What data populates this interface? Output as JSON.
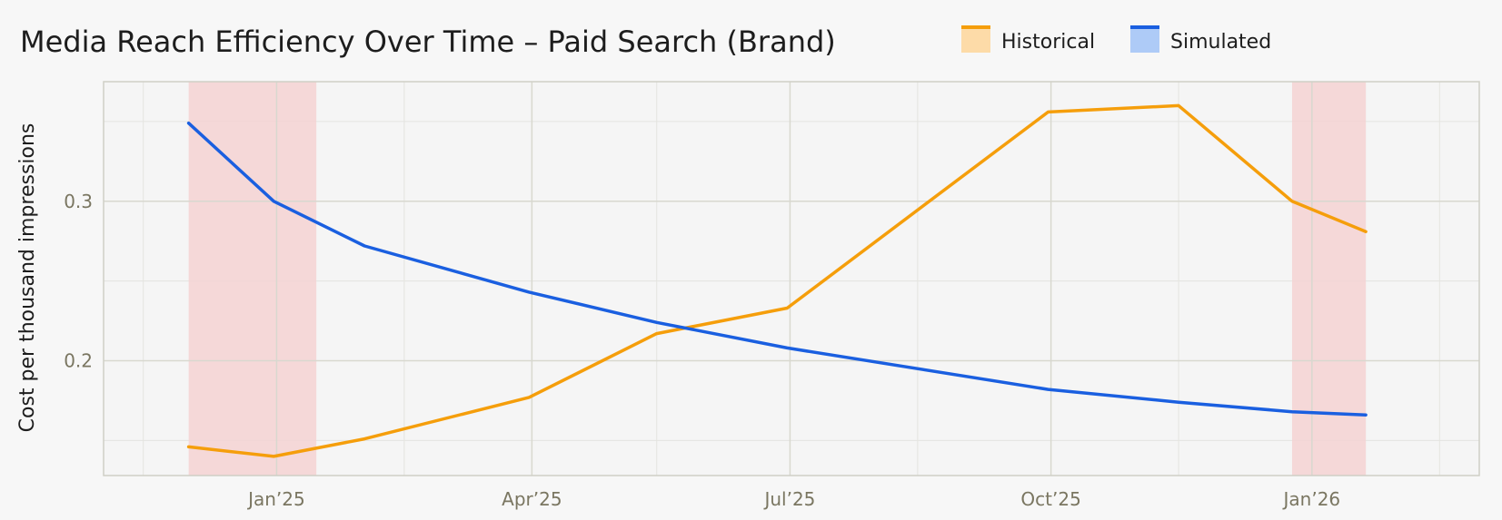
{
  "chart_data": {
    "type": "line",
    "title": "Media Reach Efficiency Over Time – Paid Search (Brand)",
    "xlabel": "",
    "ylabel": "Cost per thousand impressions",
    "x": [
      "2024-12-01",
      "2024-12-31",
      "2025-02-01",
      "2025-03-31",
      "2025-05-15",
      "2025-06-30",
      "2025-09-30",
      "2025-11-15",
      "2025-12-25",
      "2026-01-20"
    ],
    "series": [
      {
        "name": "Historical",
        "color": "#f59e0b",
        "values": [
          0.146,
          0.14,
          0.151,
          0.177,
          0.217,
          0.233,
          0.356,
          0.36,
          0.3,
          0.281
        ]
      },
      {
        "name": "Simulated",
        "color": "#1a5fe0",
        "values": [
          0.349,
          0.3,
          0.272,
          0.243,
          0.224,
          0.208,
          0.182,
          0.174,
          0.168,
          0.166
        ]
      }
    ],
    "xticks": [
      "2025-01-01",
      "2025-04-01",
      "2025-07-01",
      "2025-10-01",
      "2026-01-01"
    ],
    "xtick_labels": [
      "Jan’25",
      "Apr’25",
      "Jul’25",
      "Oct’25",
      "Jan’26"
    ],
    "yticks": [
      0.2,
      0.3
    ],
    "ytick_labels": [
      "0.2",
      "0.3"
    ],
    "xlim": [
      "2024-11-01",
      "2026-03-01"
    ],
    "ylim": [
      0.128,
      0.375
    ],
    "shaded_regions": [
      {
        "start": "2024-12-01",
        "end": "2025-01-15",
        "color": "#f5d2d2"
      },
      {
        "start": "2025-12-25",
        "end": "2026-01-20",
        "color": "#f5d2d2"
      }
    ],
    "grid": true,
    "legend_position": "top-right"
  },
  "legend": {
    "items": [
      {
        "label": "Historical",
        "color": "#f59e0b",
        "fill": "#fddba8"
      },
      {
        "label": "Simulated",
        "color": "#1a5fe0",
        "fill": "#aecbf7"
      }
    ]
  }
}
